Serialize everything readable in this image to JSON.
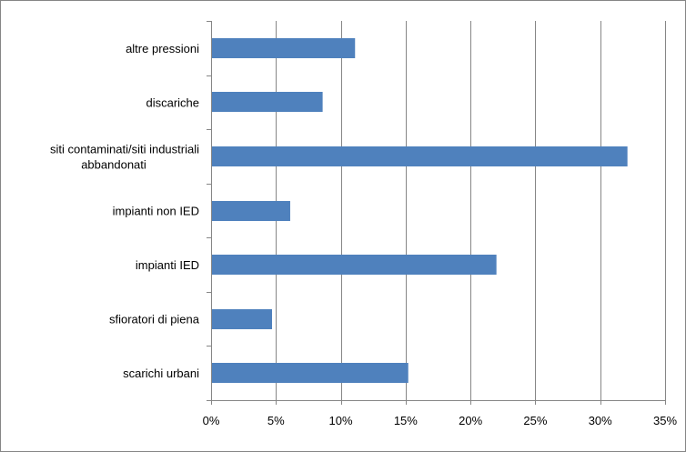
{
  "chart_data": {
    "type": "bar",
    "orientation": "horizontal",
    "title": "",
    "xlabel": "",
    "ylabel": "",
    "categories": [
      "altre pressioni",
      "discariche",
      "siti contaminati/siti industriali abbandonati",
      "impianti non IED",
      "impianti IED",
      "sfioratori di piena",
      "scarichi urbani"
    ],
    "category_lines": [
      [
        "altre pressioni"
      ],
      [
        "discariche"
      ],
      [
        "siti contaminati/siti industriali",
        "abbandonati"
      ],
      [
        "impianti non IED"
      ],
      [
        "impianti IED"
      ],
      [
        "sfioratori di piena"
      ],
      [
        "scarichi urbani"
      ]
    ],
    "values": [
      11.1,
      8.6,
      32.1,
      6.1,
      22.0,
      4.7,
      15.2
    ],
    "xlim": [
      0,
      35
    ],
    "xticks": [
      0,
      5,
      10,
      15,
      20,
      25,
      30,
      35
    ],
    "xtick_labels": [
      "0%",
      "5%",
      "10%",
      "15%",
      "20%",
      "25%",
      "30%",
      "35%"
    ],
    "grid": "vertical",
    "legend": "none",
    "bar_color": "#4f81bd",
    "grid_color": "#868686",
    "axis_color": "#868686"
  }
}
